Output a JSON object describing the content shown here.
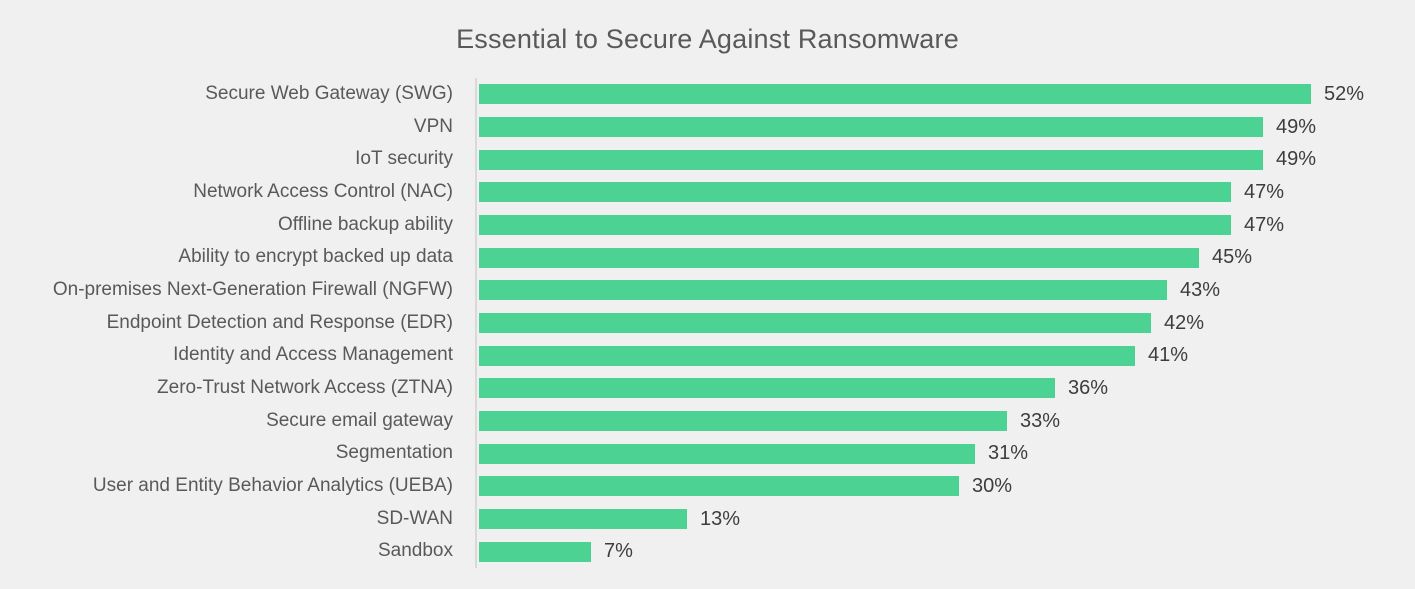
{
  "page": {
    "background_color": "#f0f0f0"
  },
  "chart_data": {
    "type": "bar",
    "orientation": "horizontal",
    "title": "Essential to Secure Against Ransomware",
    "categories": [
      "Secure Web Gateway (SWG)",
      "VPN",
      "IoT security",
      "Network Access Control (NAC)",
      "Offline backup ability",
      "Ability to encrypt backed up data",
      "On-premises Next-Generation Firewall (NGFW)",
      "Endpoint Detection and Response (EDR)",
      "Identity and Access Management",
      "Zero-Trust Network Access (ZTNA)",
      "Secure email gateway",
      "Segmentation",
      "User and Entity Behavior Analytics (UEBA)",
      "SD-WAN",
      "Sandbox"
    ],
    "values": [
      52,
      49,
      49,
      47,
      47,
      45,
      43,
      42,
      41,
      36,
      33,
      31,
      30,
      13,
      7
    ],
    "value_labels": [
      "52%",
      "49%",
      "49%",
      "47%",
      "47%",
      "45%",
      "43%",
      "42%",
      "41%",
      "36%",
      "33%",
      "31%",
      "30%",
      "13%",
      "7%"
    ],
    "xlabel": "",
    "ylabel": "",
    "xlim": [
      0,
      58.5
    ],
    "grid": false,
    "legend": false,
    "bar_color": "#4cd394",
    "title_color": "#595959",
    "category_label_color": "#595959",
    "value_label_color": "#3d3d3d",
    "axis_line_color": "#d9d9d9"
  }
}
